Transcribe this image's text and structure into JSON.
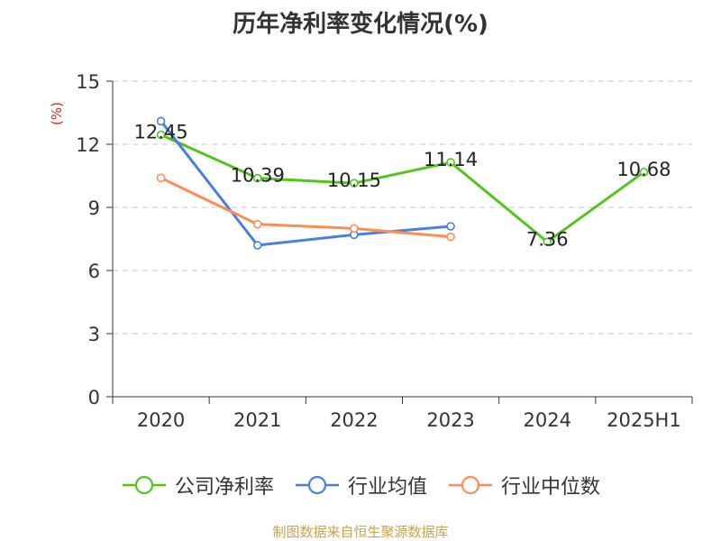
{
  "title": "历年净利率变化情况(%)",
  "source": "制图数据来自恒生聚源数据库",
  "chart_data": {
    "type": "line",
    "categories": [
      "2020",
      "2021",
      "2022",
      "2023",
      "2024",
      "2025H1"
    ],
    "ylabel": "(%)",
    "ylim": [
      0,
      15
    ],
    "yticks": [
      0,
      3,
      6,
      9,
      12,
      15
    ],
    "grid": true,
    "legend_position": "bottom",
    "series": [
      {
        "name": "公司净利率",
        "color": "#52c41a",
        "values": [
          12.45,
          10.39,
          10.15,
          11.14,
          7.36,
          10.68
        ],
        "labels": [
          "12.45",
          "10.39",
          "10.15",
          "11.14",
          "7.36",
          "10.68"
        ],
        "show_labels": true
      },
      {
        "name": "行业均值",
        "color": "#4a7fe0",
        "values": [
          13.1,
          7.2,
          7.7,
          8.1,
          null,
          null
        ],
        "show_labels": false
      },
      {
        "name": "行业中位数",
        "color": "#ff8c55",
        "values": [
          10.4,
          8.2,
          8.0,
          7.6,
          null,
          null
        ],
        "show_labels": false
      }
    ]
  }
}
